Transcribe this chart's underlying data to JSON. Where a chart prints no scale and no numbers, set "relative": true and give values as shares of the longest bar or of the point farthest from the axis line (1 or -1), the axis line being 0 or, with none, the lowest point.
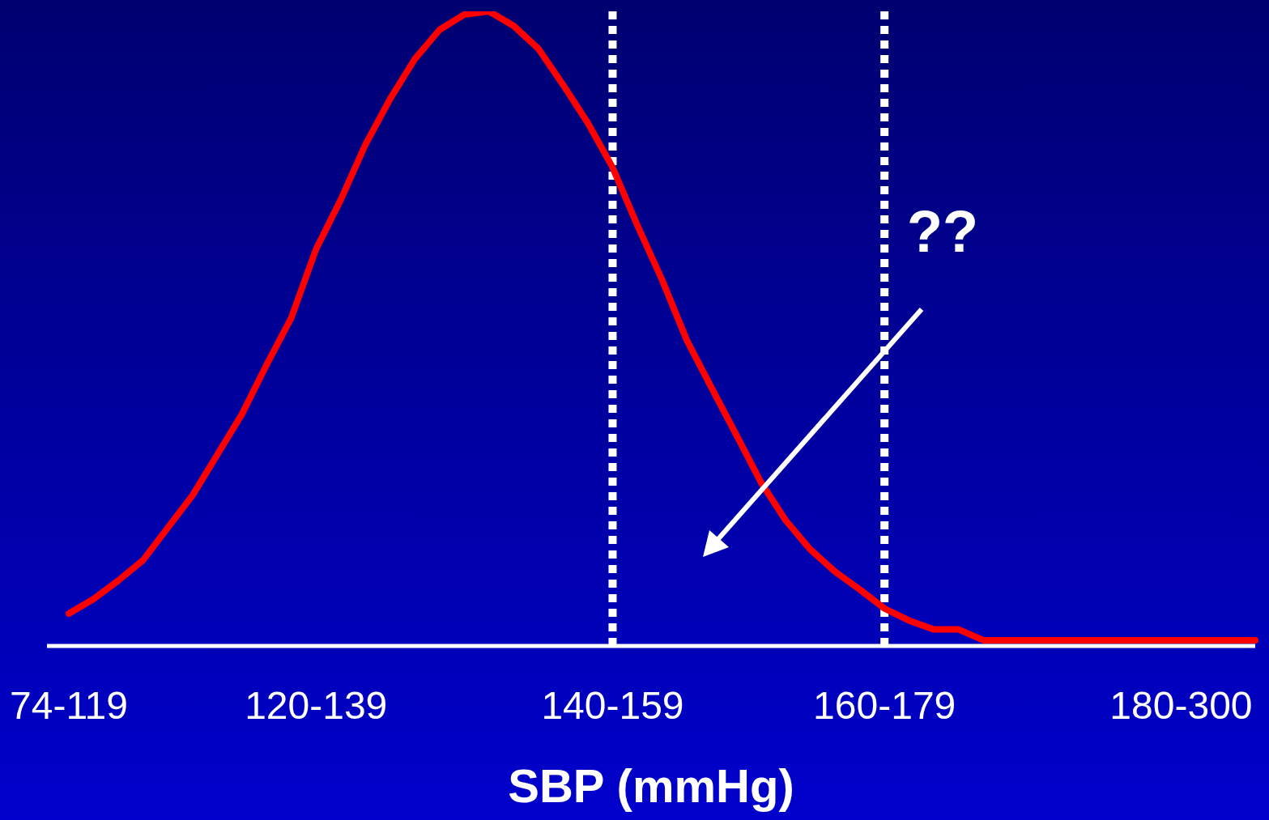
{
  "chart_data": {
    "type": "line",
    "relative": true,
    "xlabel": "SBP (mmHg)",
    "categories": [
      "74-119",
      null,
      null,
      null,
      null,
      null,
      null,
      null,
      null,
      null,
      "120-139",
      null,
      null,
      null,
      null,
      null,
      null,
      null,
      null,
      null,
      null,
      null,
      "140-159",
      null,
      null,
      null,
      null,
      null,
      null,
      null,
      null,
      null,
      null,
      "160-179",
      null,
      null,
      null,
      null,
      null,
      null,
      null,
      null,
      null,
      null,
      null,
      "180-300",
      null,
      null,
      null
    ],
    "values": [
      0.051,
      0.074,
      0.103,
      0.135,
      0.186,
      0.237,
      0.301,
      0.365,
      0.443,
      0.517,
      0.625,
      0.703,
      0.79,
      0.862,
      0.925,
      0.971,
      0.995,
      1,
      0.977,
      0.941,
      0.884,
      0.824,
      0.754,
      0.663,
      0.577,
      0.482,
      0.407,
      0.333,
      0.258,
      0.198,
      0.152,
      0.117,
      0.089,
      0.059,
      0.04,
      0.026,
      0.026,
      0.009,
      0.009,
      0.009,
      0.009,
      0.009,
      0.009,
      0.009,
      0.009,
      0.009,
      0.009,
      0.009,
      0.009
    ],
    "color": "#ff0000",
    "ref_lines": [
      {
        "axis": "x",
        "value": "140-159",
        "color": "#ffffff",
        "line_style": "dotted"
      },
      {
        "axis": "x",
        "value": "160-179",
        "color": "#ffffff",
        "line_style": "dotted"
      }
    ],
    "annotations": [
      "??"
    ]
  }
}
